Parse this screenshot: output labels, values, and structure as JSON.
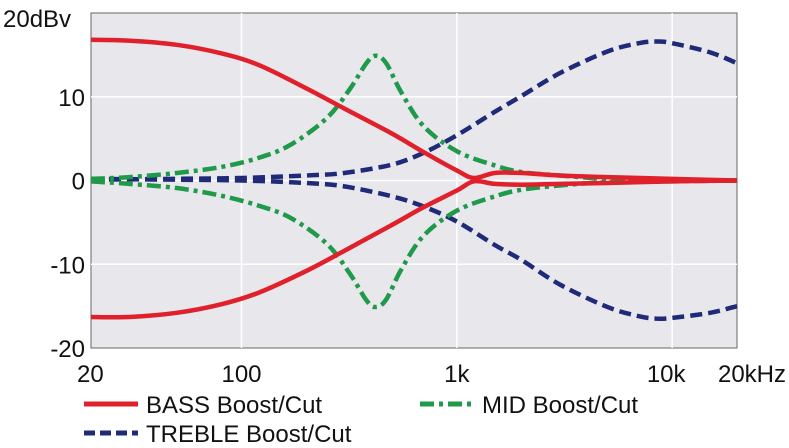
{
  "chart_data": {
    "type": "line",
    "x_scale": "log",
    "xlim": [
      20,
      20000
    ],
    "ylim": [
      -20,
      20
    ],
    "grid": true,
    "x_ticks": [
      {
        "value": 20,
        "label": "20"
      },
      {
        "value": 100,
        "label": "100"
      },
      {
        "value": 1000,
        "label": "1k"
      },
      {
        "value": 10000,
        "label": "10k"
      },
      {
        "value": 20000,
        "label": "20kHz"
      }
    ],
    "y_ticks": [
      {
        "value": 20,
        "label": "20dBv"
      },
      {
        "value": 10,
        "label": "10"
      },
      {
        "value": 0,
        "label": "0"
      },
      {
        "value": -10,
        "label": "-10"
      },
      {
        "value": -20,
        "label": "-20"
      }
    ],
    "legend": {
      "placement": "bottom",
      "items": [
        {
          "label": "BASS Boost/Cut",
          "color": "#e0202a",
          "style": "solid"
        },
        {
          "label": "MID Boost/Cut",
          "color": "#1f9a4a",
          "style": "dashdot"
        },
        {
          "label": "TREBLE Boost/Cut",
          "color": "#1f2a78",
          "style": "dashed"
        }
      ]
    },
    "series": [
      {
        "group": "BASS Boost/Cut",
        "color": "#e0202a",
        "style": "solid",
        "x": [
          20,
          30,
          50,
          80,
          120,
          200,
          300,
          500,
          700,
          1000,
          1200,
          1500,
          2000,
          3000,
          5000,
          10000,
          20000
        ],
        "y": [
          16.8,
          16.7,
          16.2,
          15.2,
          13.8,
          11.0,
          8.6,
          5.6,
          3.4,
          1.2,
          0.3,
          0.9,
          0.9,
          0.6,
          0.4,
          0.2,
          0.0
        ]
      },
      {
        "group": "BASS Boost/Cut",
        "color": "#e0202a",
        "style": "solid",
        "x": [
          20,
          30,
          50,
          80,
          120,
          200,
          300,
          500,
          700,
          1000,
          1200,
          1500,
          2000,
          3000,
          5000,
          10000,
          20000
        ],
        "y": [
          -16.3,
          -16.3,
          -15.8,
          -14.8,
          -13.4,
          -10.8,
          -8.4,
          -5.3,
          -3.2,
          -1.2,
          -0.1,
          -0.4,
          -0.5,
          -0.4,
          -0.3,
          -0.1,
          0.0
        ]
      },
      {
        "group": "MID Boost/Cut",
        "color": "#1f9a4a",
        "style": "dashdot",
        "x": [
          20,
          30,
          50,
          80,
          120,
          170,
          250,
          320,
          380,
          420,
          470,
          550,
          700,
          1000,
          1500,
          2000,
          3000,
          5000,
          10000,
          20000
        ],
        "y": [
          0.2,
          0.4,
          0.9,
          1.6,
          2.7,
          4.3,
          7.5,
          11.0,
          14.0,
          14.9,
          14.0,
          10.6,
          6.5,
          3.5,
          1.8,
          1.0,
          0.6,
          0.2,
          0.1,
          0.0
        ]
      },
      {
        "group": "MID Boost/Cut",
        "color": "#1f9a4a",
        "style": "dashdot",
        "x": [
          20,
          30,
          50,
          80,
          120,
          170,
          250,
          320,
          380,
          420,
          470,
          550,
          700,
          1000,
          1500,
          2000,
          3000,
          5000,
          10000,
          20000
        ],
        "y": [
          -0.1,
          -0.4,
          -0.9,
          -1.8,
          -3.0,
          -4.5,
          -7.6,
          -11.2,
          -14.3,
          -15.1,
          -14.2,
          -10.7,
          -6.6,
          -3.6,
          -1.9,
          -1.1,
          -0.6,
          -0.2,
          -0.1,
          0.0
        ]
      },
      {
        "group": "TREBLE Boost/Cut",
        "color": "#1f2a78",
        "style": "dashed",
        "x": [
          20,
          50,
          100,
          200,
          300,
          500,
          700,
          1000,
          1500,
          2000,
          3000,
          5000,
          7000,
          8500,
          10000,
          15000,
          20000
        ],
        "y": [
          0.1,
          0.2,
          0.3,
          0.6,
          0.9,
          1.9,
          3.3,
          5.4,
          8.2,
          10.1,
          12.8,
          15.4,
          16.4,
          16.6,
          16.4,
          15.3,
          14.0
        ]
      },
      {
        "group": "TREBLE Boost/Cut",
        "color": "#1f2a78",
        "style": "dashed",
        "x": [
          20,
          50,
          100,
          200,
          300,
          500,
          700,
          1000,
          1500,
          2000,
          3000,
          5000,
          7000,
          8500,
          10000,
          15000,
          20000
        ],
        "y": [
          0.2,
          0.1,
          0.0,
          -0.3,
          -0.7,
          -1.9,
          -3.1,
          -4.9,
          -7.7,
          -9.5,
          -12.4,
          -15.1,
          -16.2,
          -16.5,
          -16.4,
          -15.8,
          -15.0
        ]
      }
    ]
  }
}
